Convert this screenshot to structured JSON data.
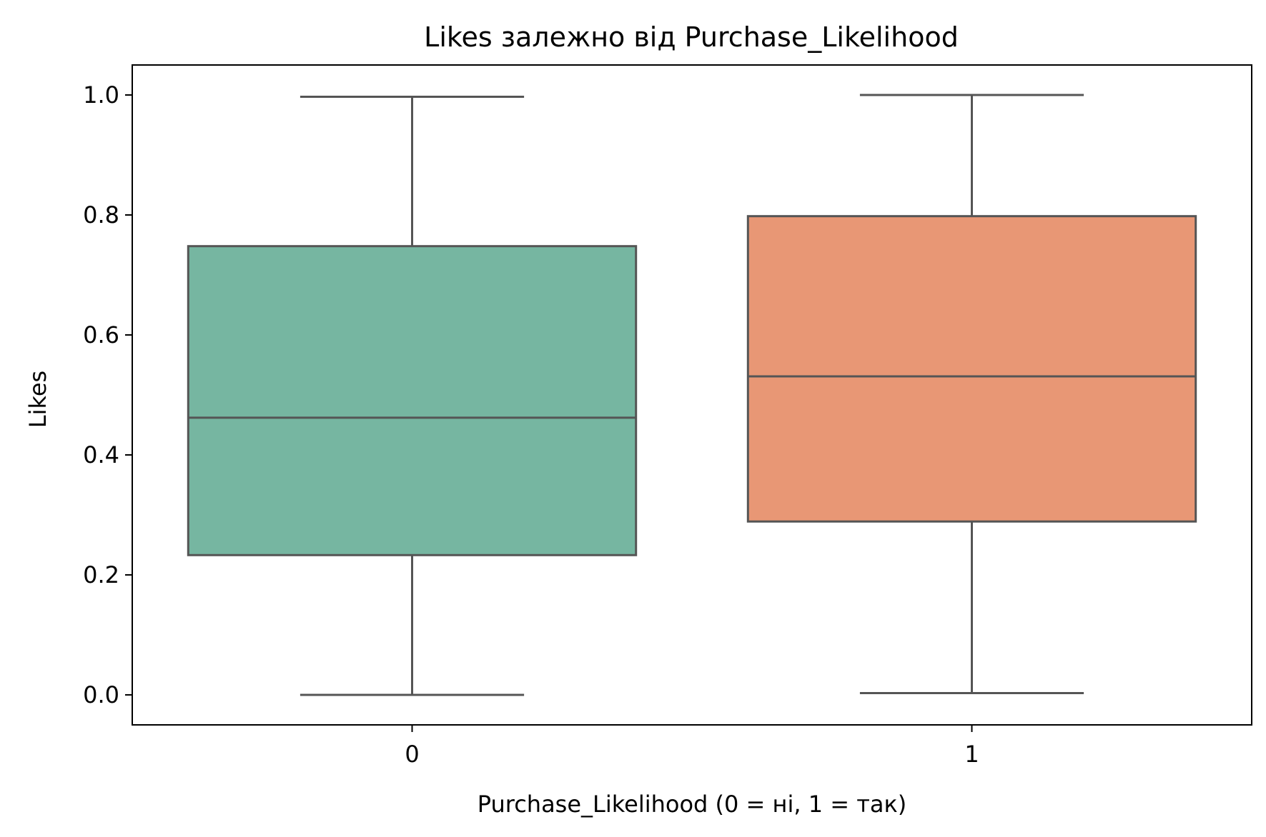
{
  "chart_data": {
    "type": "box",
    "title": "Likes залежно від Purchase_Likelihood",
    "xlabel": "Purchase_Likelihood (0 = ні, 1 = так)",
    "ylabel": "Likes",
    "ylim": [
      -0.05,
      1.05
    ],
    "yticks": [
      "0.0",
      "0.2",
      "0.4",
      "0.6",
      "0.8",
      "1.0"
    ],
    "categories": [
      "0",
      "1"
    ],
    "grid": false,
    "boxes": [
      {
        "category": "0",
        "whisker_low": 0.0,
        "q1": 0.233,
        "median": 0.462,
        "q3": 0.748,
        "whisker_high": 0.997,
        "color": "#76b6a1"
      },
      {
        "category": "1",
        "whisker_low": 0.003,
        "q1": 0.289,
        "median": 0.531,
        "q3": 0.798,
        "whisker_high": 1.0,
        "color": "#e89775"
      }
    ],
    "line_color": "#555555"
  }
}
